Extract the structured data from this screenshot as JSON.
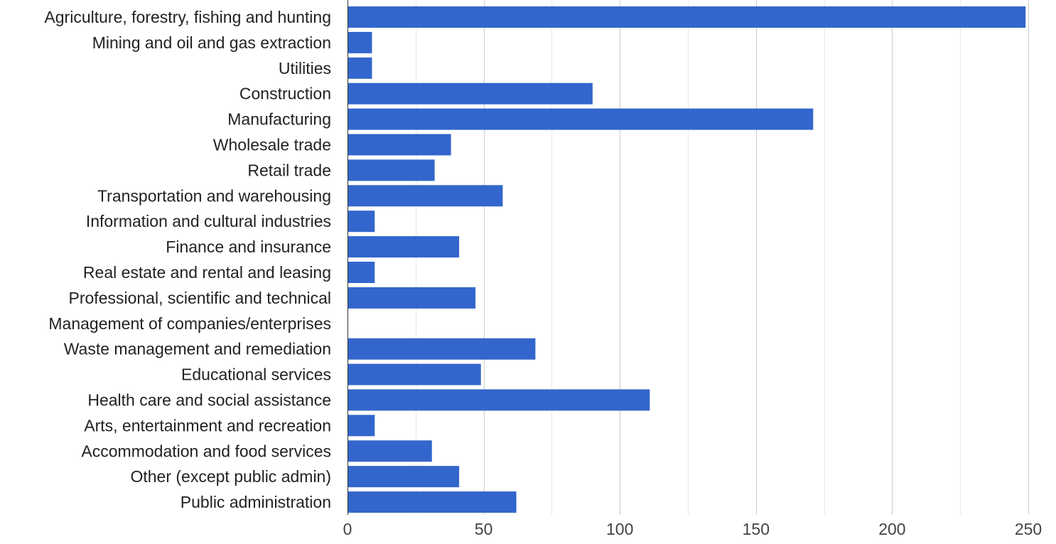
{
  "chart_data": {
    "type": "bar",
    "orientation": "horizontal",
    "title": "",
    "xlabel": "",
    "ylabel": "",
    "xlim": [
      0,
      250
    ],
    "x_ticks": [
      0,
      50,
      100,
      150,
      200,
      250
    ],
    "minor_gridlines": true,
    "grid": true,
    "legend": "none",
    "bar_color": "#3366cc",
    "categories": [
      "Agriculture, forestry, fishing and hunting",
      "Mining and oil and gas extraction",
      "Utilities",
      "Construction",
      "Manufacturing",
      "Wholesale trade",
      "Retail trade",
      "Transportation and warehousing",
      "Information and cultural industries",
      "Finance and insurance",
      "Real estate and rental and leasing",
      "Professional, scientific and technical",
      "Management of companies/enterprises",
      "Waste management and remediation",
      "Educational services",
      "Health care and social assistance",
      "Arts, entertainment and recreation",
      "Accommodation and food services",
      "Other (except public admin)",
      "Public administration"
    ],
    "values": [
      249,
      9,
      9,
      90,
      171,
      38,
      32,
      57,
      10,
      41,
      10,
      47,
      0,
      69,
      49,
      111,
      10,
      31,
      41,
      62
    ]
  }
}
